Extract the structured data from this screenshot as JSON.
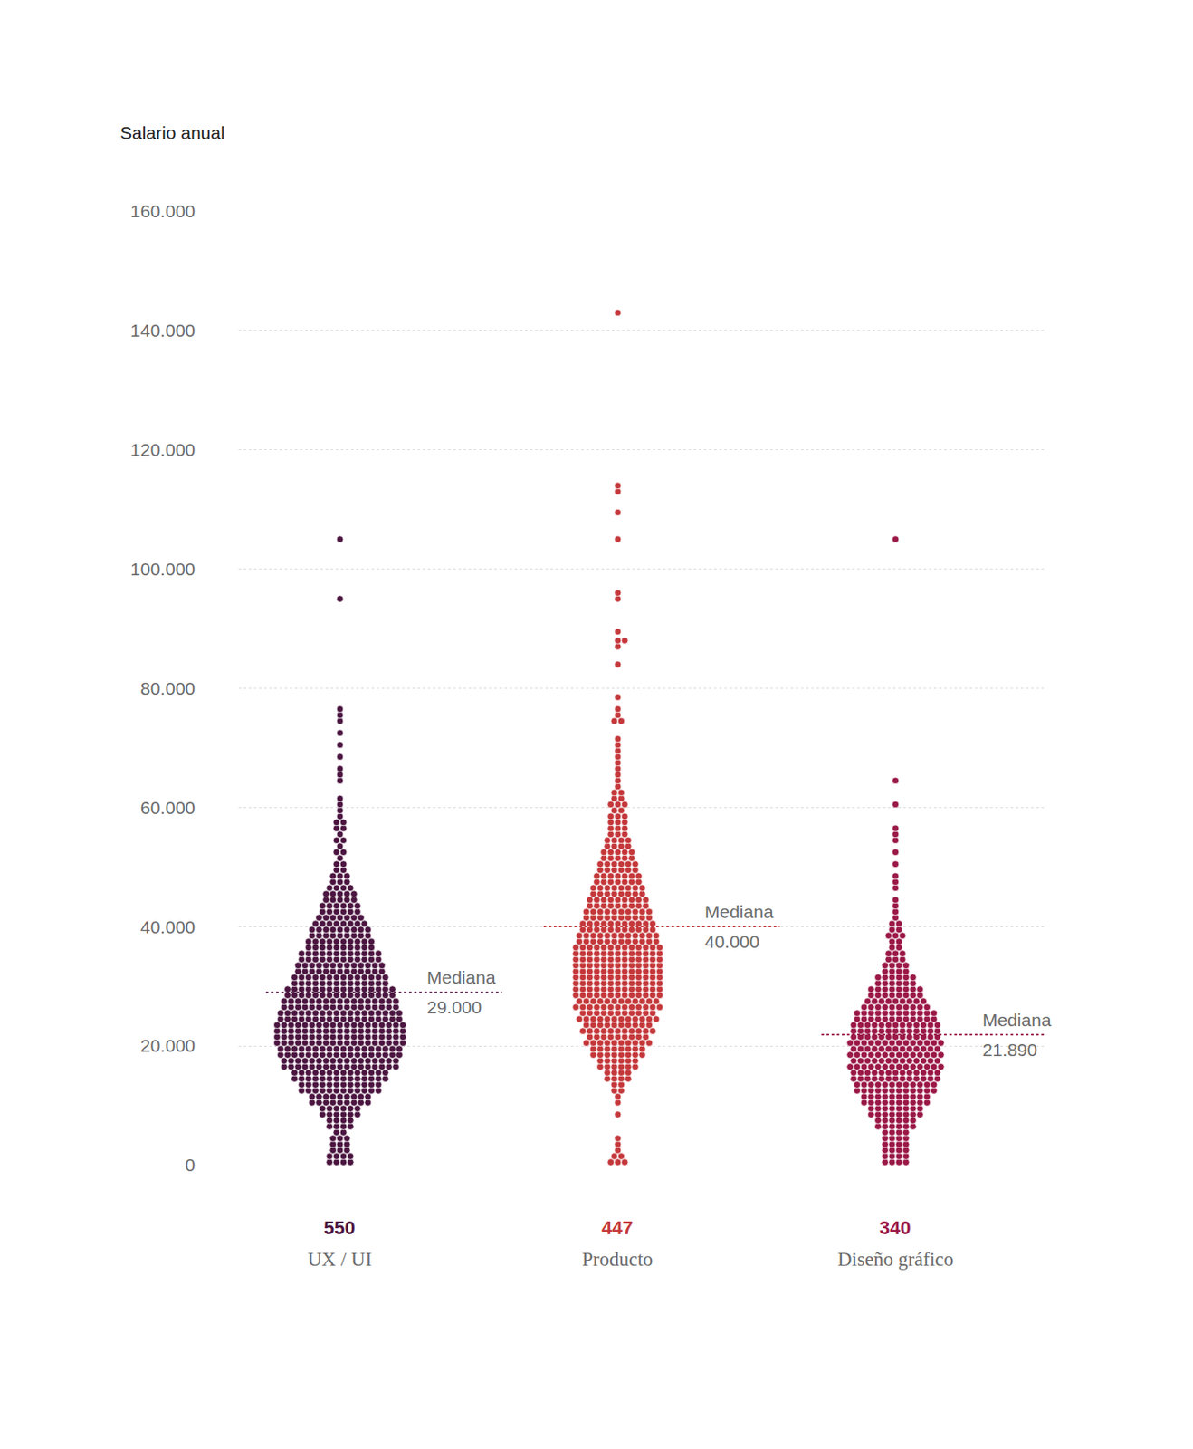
{
  "chart_data": {
    "type": "beeswarm",
    "y_label": "Salario anual",
    "ylim": [
      0,
      160000
    ],
    "yticks": [
      0,
      {
        "value": 20000,
        "label": "20.000"
      },
      {
        "value": 40000,
        "label": "40.000"
      },
      {
        "value": 60000,
        "label": "60.000"
      },
      {
        "value": 80000,
        "label": "80.000"
      },
      {
        "value": 100000,
        "label": "100.000"
      },
      {
        "value": 120000,
        "label": "120.000"
      },
      {
        "value": 140000,
        "label": "140.000"
      },
      {
        "value": 160000,
        "label": "160.000"
      }
    ],
    "grid": true,
    "tick_labels": "y",
    "median_text": "Mediana",
    "bins": [
      0,
      2000,
      4000,
      6000,
      8000,
      10000,
      12000,
      14000,
      16000,
      18000,
      20000,
      22000,
      24000,
      26000,
      28000,
      30000,
      32000,
      34000,
      36000,
      38000,
      40000,
      42000,
      44000,
      46000,
      48000,
      50000,
      52000,
      54000,
      56000,
      58000,
      60000,
      62000,
      64000,
      66000,
      68000,
      70000,
      72000,
      74000,
      76000,
      78000,
      80000
    ],
    "series": [
      {
        "name": "UX / UI",
        "color": "#4b1540",
        "n": 550,
        "median": 29000,
        "median_label": "29.000",
        "counts": [
          8,
          6,
          5,
          8,
          12,
          18,
          24,
          28,
          34,
          36,
          38,
          38,
          36,
          34,
          32,
          28,
          26,
          24,
          20,
          18,
          15,
          12,
          10,
          7,
          5,
          3,
          3,
          3,
          4,
          2,
          2,
          0,
          2,
          1,
          1,
          1,
          1,
          2,
          1,
          0
        ],
        "outliers": [
          95000,
          105000
        ]
      },
      {
        "name": "Producto",
        "color": "#c4373a",
        "n": 447,
        "median": 40000,
        "median_label": "40.000",
        "counts": [
          5,
          2,
          1,
          0,
          1,
          2,
          4,
          8,
          12,
          16,
          19,
          21,
          23,
          25,
          26,
          26,
          26,
          26,
          25,
          23,
          21,
          19,
          17,
          15,
          13,
          11,
          9,
          7,
          6,
          5,
          5,
          3,
          2,
          2,
          2,
          2,
          0,
          3,
          1,
          1
        ],
        "outliers": [
          84000,
          87000,
          88000,
          88000,
          89500,
          95000,
          96000,
          105000,
          109500,
          113000,
          114000,
          143000
        ]
      },
      {
        "name": "Diseño gráfico",
        "color": "#9a1746",
        "n": 340,
        "median": 21890,
        "median_label": "21.890",
        "counts": [
          8,
          8,
          8,
          12,
          16,
          20,
          24,
          26,
          27,
          27,
          27,
          26,
          24,
          19,
          16,
          12,
          8,
          6,
          4,
          5,
          3,
          2,
          1,
          2,
          1,
          1,
          1,
          2,
          1,
          0,
          1,
          0,
          1,
          0,
          0,
          0,
          0,
          0,
          0,
          0
        ],
        "outliers": [
          105000
        ]
      }
    ]
  }
}
